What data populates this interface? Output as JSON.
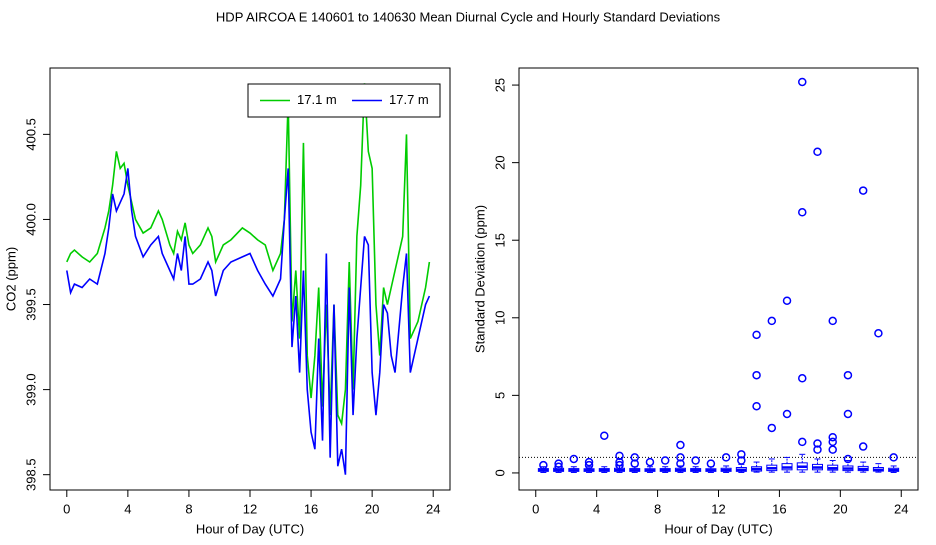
{
  "title": "HDP   AIRCOA E   140601 to 140630   Mean Diurnal Cycle and Hourly Standard Deviations",
  "chart_data": [
    {
      "type": "line",
      "xlabel": "Hour of Day (UTC)",
      "ylabel": "CO2 (ppm)",
      "xlim": [
        -1.1,
        25.1
      ],
      "ylim": [
        398.41,
        400.89
      ],
      "xticks": [
        0,
        4,
        8,
        12,
        16,
        20,
        24
      ],
      "yticks": [
        398.5,
        {
          "value": 399,
          "label": "399.0"
        },
        399.5,
        {
          "value": 400,
          "label": "400.0"
        },
        400.5
      ],
      "legend": "topright",
      "x": [
        0,
        0.25,
        0.5,
        1,
        1.5,
        2,
        2.5,
        2.75,
        3,
        3.25,
        3.5,
        3.75,
        4,
        4.25,
        4.5,
        5,
        5.5,
        6,
        6.25,
        6.75,
        7,
        7.25,
        7.5,
        7.75,
        8,
        8.25,
        8.75,
        9.25,
        9.5,
        9.75,
        10.25,
        10.75,
        11.5,
        12,
        12.5,
        13,
        13.5,
        14,
        14.25,
        14.5,
        14.75,
        15,
        15.25,
        15.5,
        15.75,
        16,
        16.25,
        16.5,
        16.75,
        17,
        17.25,
        17.5,
        17.75,
        18,
        18.25,
        18.5,
        18.75,
        19,
        19.25,
        19.5,
        19.75,
        20,
        20.25,
        20.5,
        20.75,
        21,
        21.25,
        21.5,
        22,
        22.25,
        22.5,
        23,
        23.5,
        23.75
      ],
      "series": [
        {
          "name": "17.1 m",
          "color": "#00cc00",
          "values": [
            399.75,
            399.8,
            399.82,
            399.78,
            399.75,
            399.8,
            399.95,
            400.05,
            400.2,
            400.4,
            400.3,
            400.33,
            400.2,
            400.1,
            400.0,
            399.92,
            399.95,
            400.05,
            400.0,
            399.85,
            399.8,
            399.93,
            399.88,
            399.98,
            399.85,
            399.8,
            399.85,
            399.95,
            399.9,
            399.75,
            399.85,
            399.88,
            399.95,
            399.92,
            399.88,
            399.85,
            399.7,
            399.8,
            400.0,
            400.7,
            399.4,
            399.7,
            399.3,
            400.45,
            399.2,
            398.95,
            399.2,
            399.6,
            398.9,
            399.5,
            398.85,
            399.5,
            398.85,
            398.8,
            399.0,
            399.75,
            399.0,
            399.9,
            400.2,
            400.8,
            400.4,
            400.3,
            399.5,
            399.2,
            399.6,
            399.5,
            399.6,
            399.7,
            399.9,
            400.5,
            399.3,
            399.4,
            399.6,
            399.75
          ]
        },
        {
          "name": "17.7 m",
          "color": "#0000ff",
          "values": [
            399.7,
            399.57,
            399.62,
            399.6,
            399.65,
            399.62,
            399.8,
            399.95,
            400.15,
            400.05,
            400.1,
            400.15,
            400.3,
            400.05,
            399.9,
            399.78,
            399.85,
            399.9,
            399.8,
            399.7,
            399.65,
            399.8,
            399.7,
            399.9,
            399.62,
            399.62,
            399.65,
            399.75,
            399.7,
            399.55,
            399.7,
            399.75,
            399.78,
            399.8,
            399.7,
            399.62,
            399.55,
            399.65,
            400.0,
            400.3,
            399.25,
            399.55,
            399.1,
            399.7,
            399.0,
            398.75,
            398.65,
            399.3,
            398.7,
            399.8,
            398.6,
            399.5,
            398.55,
            398.65,
            398.5,
            399.6,
            398.85,
            399.3,
            399.6,
            399.9,
            399.85,
            399.1,
            398.85,
            399.1,
            399.5,
            399.45,
            399.2,
            399.1,
            399.6,
            399.8,
            399.1,
            399.3,
            399.5,
            399.55
          ]
        }
      ]
    },
    {
      "type": "box",
      "xlabel": "Hour of Day (UTC)",
      "ylabel": "Standard Deviation (ppm)",
      "xlim": [
        -1.1,
        25.1
      ],
      "ylim": [
        -1.1,
        26.1
      ],
      "xticks": [
        0,
        4,
        8,
        12,
        16,
        20,
        24
      ],
      "yticks": [
        0,
        5,
        10,
        15,
        20,
        25
      ],
      "color": "#0000ff",
      "hline": 1,
      "positions": [
        0.5,
        1.5,
        2.5,
        3.5,
        4.5,
        5.5,
        6.5,
        7.5,
        8.5,
        9.5,
        10.5,
        11.5,
        12.5,
        13.5,
        14.5,
        15.5,
        16.5,
        17.5,
        18.5,
        19.5,
        20.5,
        21.5,
        22.5,
        23.5
      ],
      "whislo": [
        0.03,
        0.03,
        0.03,
        0.03,
        0.03,
        0.03,
        0.03,
        0.03,
        0.03,
        0.03,
        0.03,
        0.03,
        0.03,
        0.03,
        0.05,
        0.05,
        0.05,
        0.05,
        0.05,
        0.05,
        0.05,
        0.05,
        0.05,
        0.03
      ],
      "q1": [
        0.1,
        0.1,
        0.1,
        0.1,
        0.1,
        0.1,
        0.1,
        0.1,
        0.1,
        0.1,
        0.1,
        0.1,
        0.1,
        0.1,
        0.12,
        0.15,
        0.2,
        0.2,
        0.2,
        0.18,
        0.15,
        0.15,
        0.12,
        0.1
      ],
      "median": [
        0.18,
        0.18,
        0.17,
        0.17,
        0.18,
        0.18,
        0.17,
        0.17,
        0.18,
        0.18,
        0.17,
        0.17,
        0.18,
        0.2,
        0.25,
        0.3,
        0.35,
        0.4,
        0.35,
        0.3,
        0.28,
        0.25,
        0.2,
        0.18
      ],
      "q3": [
        0.28,
        0.3,
        0.28,
        0.27,
        0.28,
        0.3,
        0.28,
        0.27,
        0.28,
        0.3,
        0.28,
        0.27,
        0.3,
        0.35,
        0.4,
        0.5,
        0.6,
        0.65,
        0.55,
        0.5,
        0.45,
        0.42,
        0.35,
        0.3
      ],
      "whishi": [
        0.4,
        0.4,
        0.4,
        0.4,
        0.4,
        0.45,
        0.4,
        0.4,
        0.4,
        0.45,
        0.4,
        0.4,
        0.45,
        0.55,
        0.7,
        0.9,
        1.0,
        1.2,
        0.9,
        0.8,
        0.8,
        0.7,
        0.6,
        0.45
      ],
      "fliers": [
        [
          0.5
        ],
        [
          0.6,
          0.4
        ],
        [
          0.9
        ],
        [
          0.7,
          0.5
        ],
        [
          2.4
        ],
        [
          1.1,
          0.7,
          0.5
        ],
        [
          1.0,
          0.6
        ],
        [
          0.7
        ],
        [
          0.8
        ],
        [
          1.8,
          1.0,
          0.6
        ],
        [
          0.8
        ],
        [
          0.6
        ],
        [
          1.0
        ],
        [
          1.2,
          0.8
        ],
        [
          8.9,
          6.3,
          4.3
        ],
        [
          9.8,
          2.9
        ],
        [
          11.1,
          3.8
        ],
        [
          25.2,
          16.8,
          6.1,
          2.0
        ],
        [
          20.7,
          1.9,
          1.5
        ],
        [
          9.8,
          2.3,
          2.0,
          1.5
        ],
        [
          6.3,
          3.8,
          0.9
        ],
        [
          18.2,
          1.7
        ],
        [
          9.0
        ],
        [
          1.0
        ]
      ]
    }
  ]
}
